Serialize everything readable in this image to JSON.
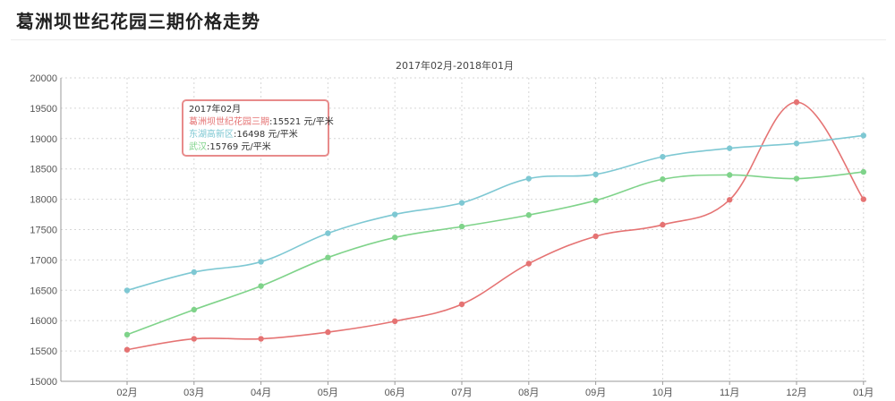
{
  "page": {
    "title": "葛洲坝世纪花园三期价格走势"
  },
  "tooltip": {
    "header": "2017年02月",
    "rows": [
      {
        "name": "葛洲坝世纪花园三期",
        "value": ":15521",
        "unit": "元/平米",
        "color": "#e57373"
      },
      {
        "name": "东湖高新区",
        "value": ":16498",
        "unit": "元/平米",
        "color": "#7ec8d3"
      },
      {
        "name": "武汉",
        "value": ":15769",
        "unit": "元/平米",
        "color": "#7fd38a"
      }
    ]
  },
  "chart_data": {
    "type": "line",
    "title": "2017年02月-2018年01月",
    "categories": [
      "02月",
      "03月",
      "04月",
      "05月",
      "06月",
      "07月",
      "08月",
      "09月",
      "10月",
      "11月",
      "12月",
      "01月"
    ],
    "ylim": [
      15000,
      20000
    ],
    "yticks": [
      15000,
      15500,
      16000,
      16500,
      17000,
      17500,
      18000,
      18500,
      19000,
      19500,
      20000
    ],
    "grid": true,
    "series": [
      {
        "name": "葛洲坝世纪花园三期",
        "color": "#e57373",
        "values": [
          15521,
          15700,
          15700,
          15810,
          15990,
          16270,
          16940,
          17390,
          17580,
          17990,
          19600,
          18000
        ]
      },
      {
        "name": "东湖高新区",
        "color": "#7ec8d3",
        "values": [
          16498,
          16800,
          16970,
          17440,
          17750,
          17940,
          18340,
          18410,
          18700,
          18840,
          18920,
          19050
        ]
      },
      {
        "name": "武汉",
        "color": "#7fd38a",
        "values": [
          15769,
          16180,
          16570,
          17040,
          17370,
          17550,
          17740,
          17980,
          18330,
          18400,
          18340,
          18450
        ]
      }
    ]
  }
}
